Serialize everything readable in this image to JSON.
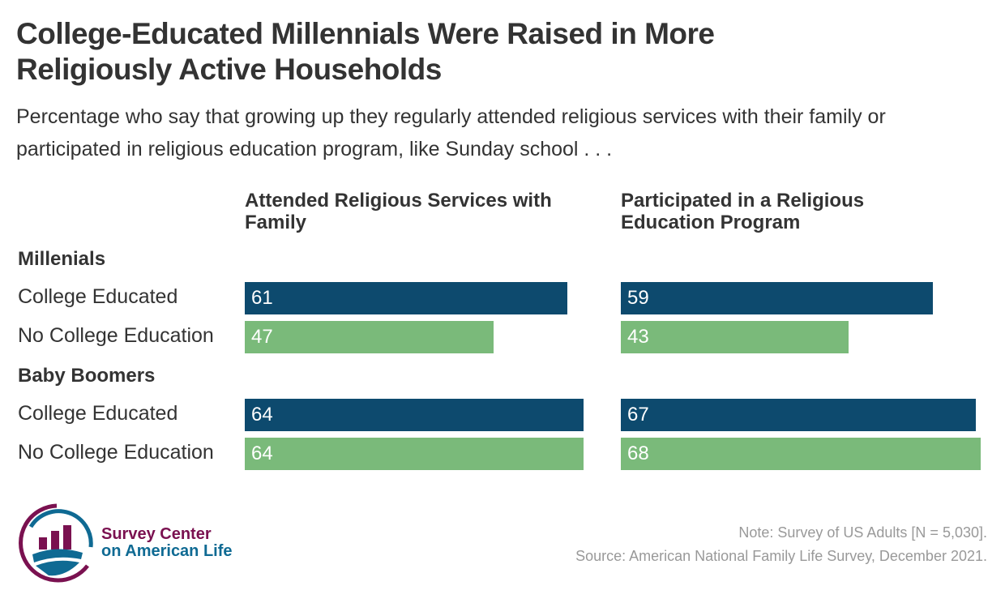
{
  "chart_data": {
    "type": "bar",
    "orientation": "horizontal",
    "title": "College-Educated Millennials Were Raised in More Religiously Active Households",
    "subtitle": "Percentage who say that growing up they regularly attended religious services with their family or participated in religious education program, like Sunday school . . .",
    "panels": [
      {
        "title": "Attended Religious Services with Family",
        "values": [
          61,
          47,
          64,
          64
        ]
      },
      {
        "title": "Participated in a Religious Education Program",
        "values": [
          59,
          43,
          67,
          68
        ]
      }
    ],
    "groups": [
      {
        "label": "Millenials",
        "rows": [
          "College Educated",
          "No College Education"
        ]
      },
      {
        "label": "Baby Boomers",
        "rows": [
          "College Educated",
          "No College Education"
        ]
      }
    ],
    "xlim": [
      0,
      100
    ],
    "colors": {
      "College Educated": "#0d4a6e",
      "No College Education": "#7aba7a"
    },
    "grid": false,
    "note": "Note: Survey of US Adults [N = 5,030].",
    "source": "Source: American National Family Life Survey, December 2021."
  },
  "logo": {
    "line1": "Survey Center",
    "line2": "on American Life"
  }
}
